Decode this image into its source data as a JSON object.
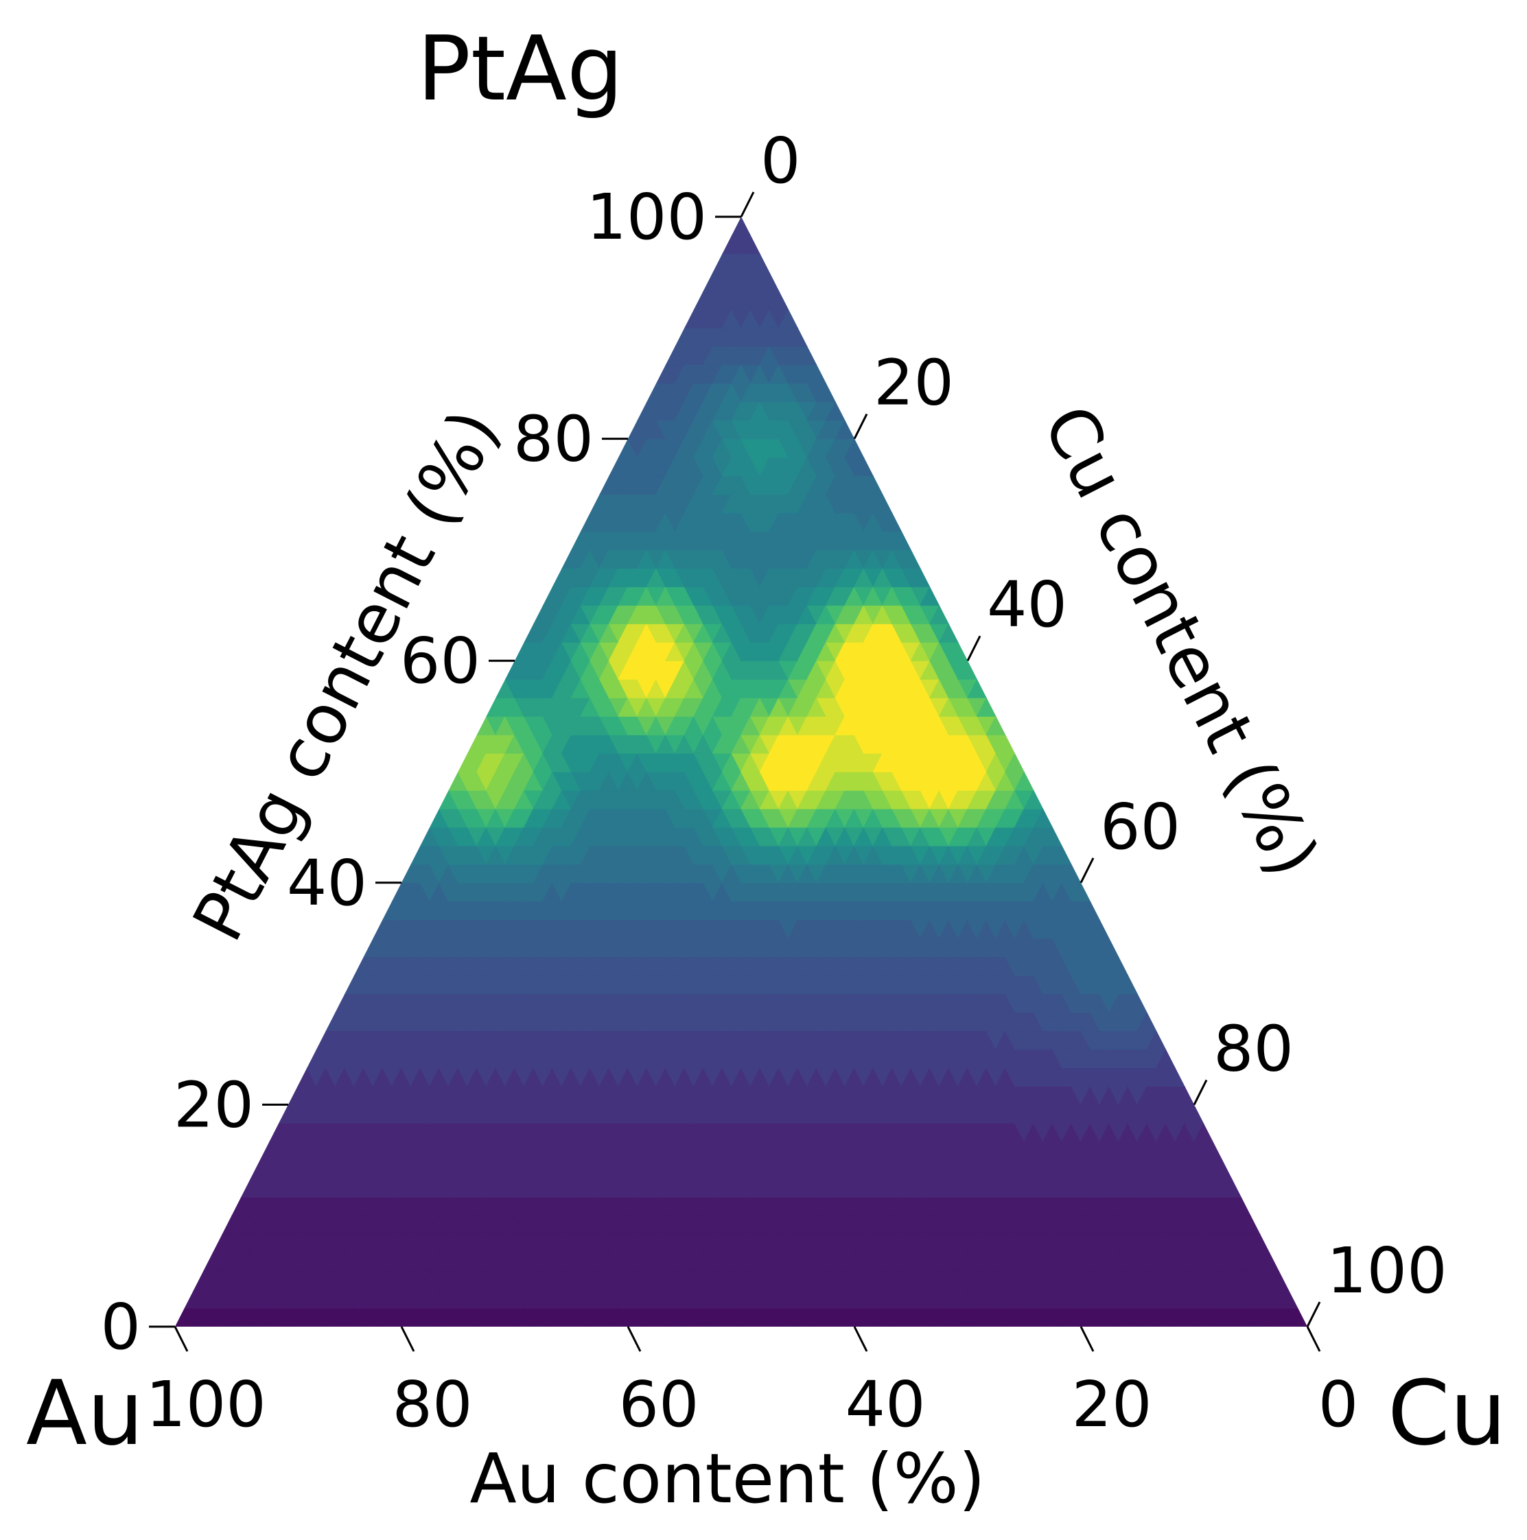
{
  "chart_data": {
    "type": "ternary-contour",
    "vertices": {
      "top": "PtAg",
      "left": "Au",
      "right": "Cu"
    },
    "axes": {
      "left": {
        "label": "PtAg content (%)",
        "ticks": [
          "0",
          "20",
          "40",
          "60",
          "80",
          "100"
        ]
      },
      "right": {
        "label": "Cu content (%)",
        "ticks": [
          "0",
          "20",
          "40",
          "60",
          "80",
          "100"
        ]
      },
      "bottom": {
        "label": "Au content (%)",
        "ticks": [
          "100",
          "80",
          "60",
          "40",
          "20",
          "0"
        ]
      }
    },
    "colormap": "viridis",
    "color_range": [
      0,
      1
    ],
    "points_description_units": "fractions: ptag, cu, au (sum 1); value in colormap units 0-1",
    "peaks": [
      {
        "ptag": 0.6,
        "cu": 0.32,
        "au": 0.08,
        "value": 0.97
      },
      {
        "ptag": 0.6,
        "cu": 0.12,
        "au": 0.28,
        "value": 0.95
      },
      {
        "ptag": 0.5,
        "cu": 0.29,
        "au": 0.21,
        "value": 0.93
      },
      {
        "ptag": 0.5,
        "cu": 0.03,
        "au": 0.47,
        "value": 0.82
      },
      {
        "ptag": 0.8,
        "cu": 0.12,
        "au": 0.08,
        "value": 0.7
      },
      {
        "ptag": 0.5,
        "cu": 0.46,
        "au": 0.04,
        "value": 0.8
      },
      {
        "ptag": 0.3,
        "cu": 0.68,
        "au": 0.02,
        "value": 0.55
      },
      {
        "ptag": 0.5,
        "cu": 0.4,
        "au": 0.1,
        "value": 0.78
      }
    ],
    "background_level": 0.06
  }
}
